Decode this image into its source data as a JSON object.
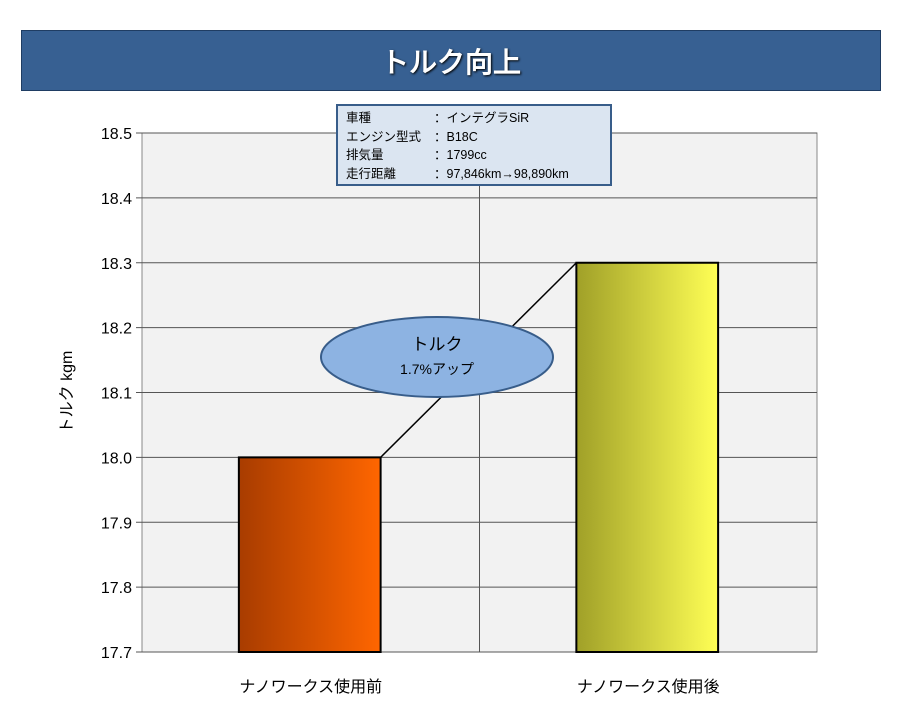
{
  "title": "トルク向上",
  "chart_data": {
    "type": "bar",
    "title": "トルク向上",
    "categories": [
      "ナノワークス使用前",
      "ナノワークス使用後"
    ],
    "values": [
      18.0,
      18.3
    ],
    "ylabel": "トルク kgm",
    "xlabel": "",
    "ylim": [
      17.7,
      18.5
    ],
    "yticks": [
      "17.7",
      "17.8",
      "17.9",
      "18.0",
      "18.1",
      "18.2",
      "18.3",
      "18.4",
      "18.5"
    ],
    "grid": true,
    "colors": [
      [
        "#a83c00",
        "#ff6600"
      ],
      [
        "#a0a028",
        "#ffff55"
      ]
    ],
    "annotation": {
      "line1": "トルク",
      "line2": "1.7%アップ"
    }
  },
  "info": [
    {
      "k": "車種",
      "v": "：インテグラSiR"
    },
    {
      "k": "エンジン型式",
      "v": "：B18C"
    },
    {
      "k": "排気量",
      "v": "：1799cc"
    },
    {
      "k": "走行距離",
      "v": "：97,846km→98,890km"
    }
  ]
}
